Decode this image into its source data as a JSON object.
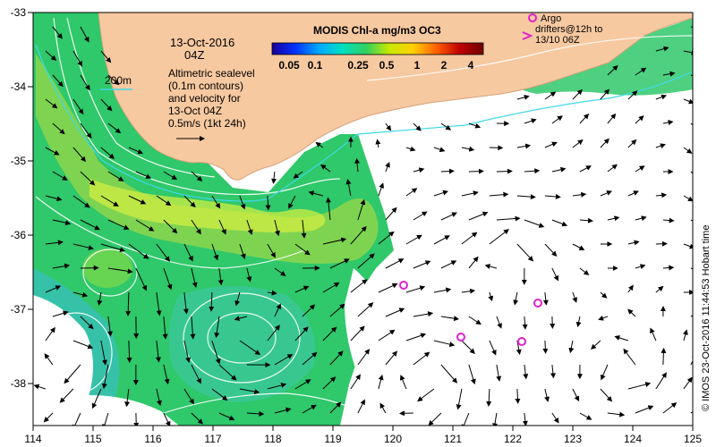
{
  "map": {
    "date_line": "13-Oct-2016",
    "time_line": "04Z",
    "colorbar_title": "MODIS Chl-a mg/m3 OC3",
    "colorbar_ticks": [
      "0.05",
      "0.1",
      "0.25",
      "0.5",
      "1",
      "2",
      "4"
    ],
    "colorbar_colors": [
      "#1a0099",
      "#0033ff",
      "#00aaff",
      "#00e0c0",
      "#30d060",
      "#c8e800",
      "#ffd000",
      "#ff6000",
      "#c00000",
      "#700000"
    ],
    "contour_label": "200m",
    "altimetry_lines": [
      "Altimetric sealevel",
      "(0.1m contours)",
      "and velocity for",
      "13-Oct 04Z",
      "0.5m/s (1kt 24h)"
    ],
    "argo_legend_lines": [
      "Argo",
      "drifters@12h to",
      "13/10 06Z"
    ],
    "credit": "© IMOS 23-Oct-2016 11:44:53 Hobart time",
    "x_ticks": [
      "114",
      "115",
      "116",
      "117",
      "118",
      "119",
      "120",
      "121",
      "122",
      "123",
      "124",
      "125"
    ],
    "y_ticks": [
      "-33",
      "-34",
      "-35",
      "-36",
      "-37",
      "-38"
    ],
    "colors": {
      "land": "#f7c9a0",
      "cloud": "#ffffff",
      "ocean_base": "#2fc86a",
      "contour_200m": "#40d8e8",
      "argo": "#e020d0"
    }
  }
}
